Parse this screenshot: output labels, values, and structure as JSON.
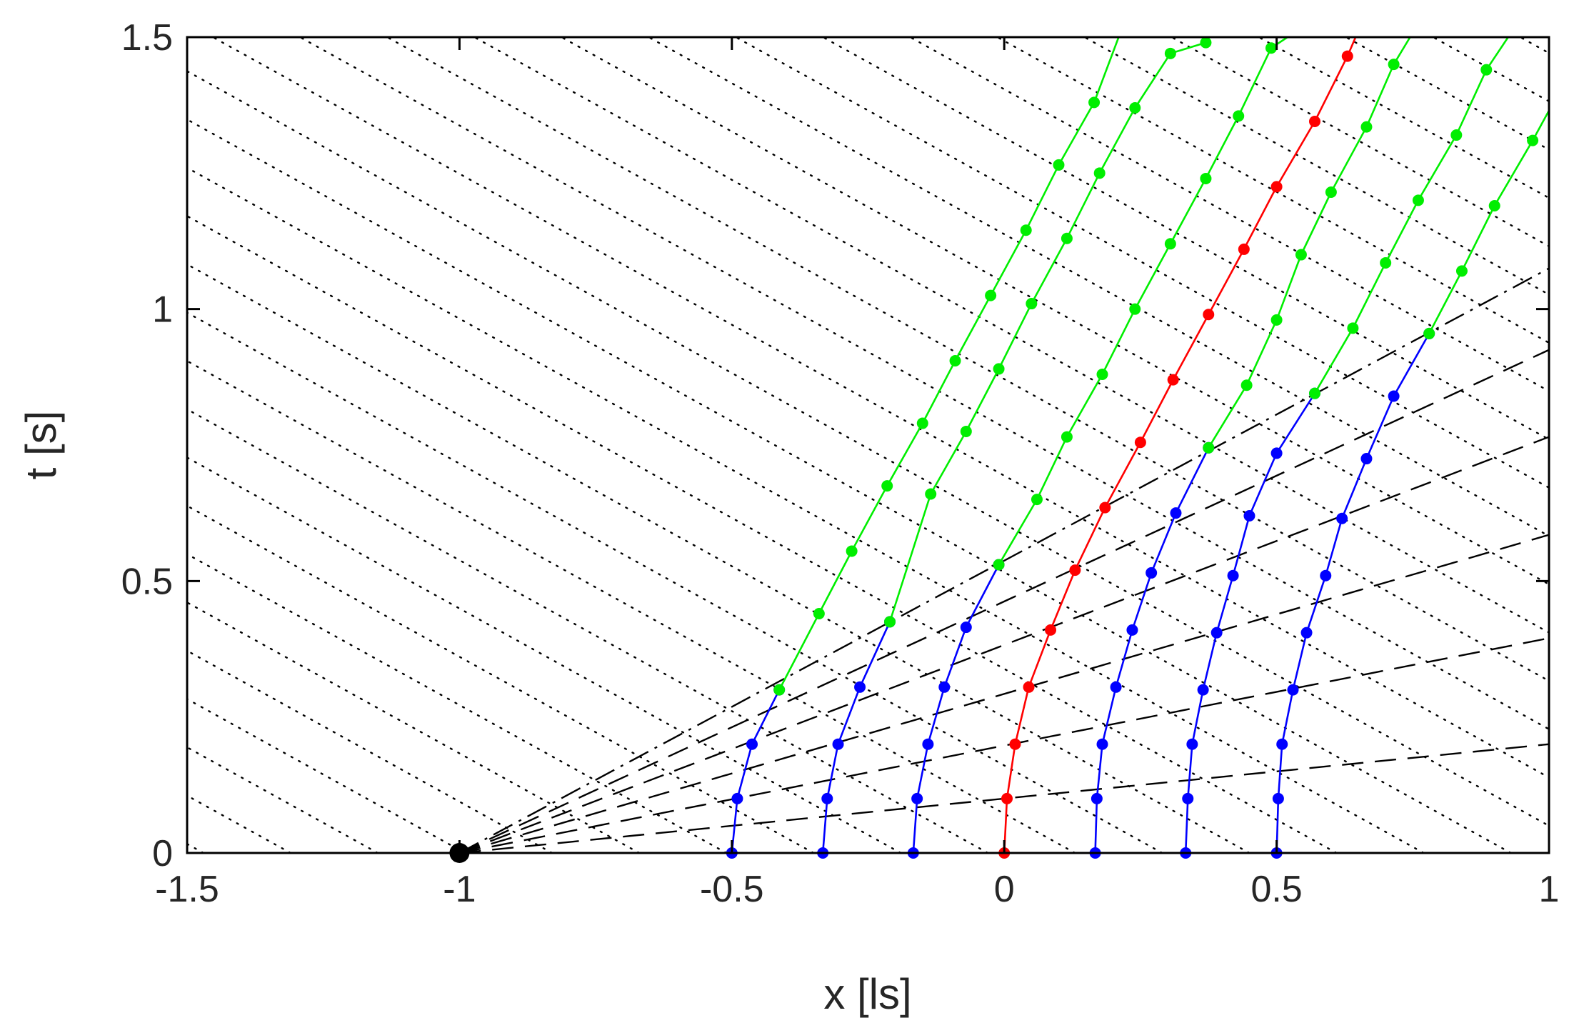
{
  "chart_data": {
    "type": "line",
    "xlabel": "x [ls]",
    "ylabel": "t [s]",
    "xlim": [
      -1.5,
      1
    ],
    "ylim": [
      0,
      1.5
    ],
    "xticks": [
      -1.5,
      -1,
      -0.5,
      0,
      0.5,
      1
    ],
    "yticks": [
      0,
      0.5,
      1,
      1.5
    ],
    "xtick_labels": [
      "-1.5",
      "-1",
      "-0.5",
      "0",
      "0.5",
      "1"
    ],
    "ytick_labels": [
      "0",
      "0.5",
      "1",
      "1.5"
    ],
    "grid": false,
    "colors": {
      "blue": "#0000ff",
      "green": "#00ee00",
      "red": "#ff0000",
      "black": "#000000"
    },
    "origin_point": [
      -1,
      0
    ],
    "series": [
      {
        "color": "blue",
        "points": [
          [
            -0.5,
            0
          ],
          [
            -0.49,
            0.1
          ],
          [
            -0.463,
            0.2
          ],
          [
            -0.413,
            0.3
          ]
        ]
      },
      {
        "color": "green",
        "points": [
          [
            -0.413,
            0.3
          ],
          [
            -0.34,
            0.44
          ],
          [
            -0.28,
            0.555
          ],
          [
            -0.215,
            0.675
          ],
          [
            -0.15,
            0.79
          ],
          [
            -0.09,
            0.905
          ],
          [
            -0.025,
            1.025
          ],
          [
            0.04,
            1.145
          ],
          [
            0.1,
            1.265
          ],
          [
            0.165,
            1.38
          ],
          [
            0.21,
            1.5
          ]
        ]
      },
      {
        "color": "blue",
        "points": [
          [
            -0.333,
            0
          ],
          [
            -0.325,
            0.1
          ],
          [
            -0.305,
            0.2
          ],
          [
            -0.265,
            0.305
          ],
          [
            -0.21,
            0.425
          ]
        ]
      },
      {
        "color": "green",
        "points": [
          [
            -0.21,
            0.425
          ],
          [
            -0.135,
            0.66
          ],
          [
            -0.07,
            0.775
          ],
          [
            -0.01,
            0.89
          ],
          [
            0.05,
            1.01
          ],
          [
            0.115,
            1.13
          ],
          [
            0.175,
            1.25
          ],
          [
            0.24,
            1.37
          ],
          [
            0.305,
            1.47
          ],
          [
            0.37,
            1.49
          ]
        ]
      },
      {
        "color": "blue",
        "points": [
          [
            -0.167,
            0
          ],
          [
            -0.16,
            0.1
          ],
          [
            -0.14,
            0.2
          ],
          [
            -0.11,
            0.305
          ],
          [
            -0.07,
            0.415
          ],
          [
            -0.01,
            0.53
          ]
        ]
      },
      {
        "color": "green",
        "points": [
          [
            -0.01,
            0.53
          ],
          [
            0.06,
            0.65
          ],
          [
            0.115,
            0.765
          ],
          [
            0.18,
            0.88
          ],
          [
            0.24,
            1.0
          ],
          [
            0.305,
            1.12
          ],
          [
            0.37,
            1.24
          ],
          [
            0.43,
            1.355
          ],
          [
            0.49,
            1.48
          ],
          [
            0.52,
            1.5
          ]
        ]
      },
      {
        "color": "red",
        "points": [
          [
            0,
            0
          ],
          [
            0.005,
            0.1
          ],
          [
            0.02,
            0.2
          ],
          [
            0.045,
            0.305
          ],
          [
            0.085,
            0.41
          ],
          [
            0.13,
            0.52
          ],
          [
            0.185,
            0.635
          ],
          [
            0.25,
            0.755
          ],
          [
            0.31,
            0.87
          ],
          [
            0.375,
            0.99
          ],
          [
            0.44,
            1.11
          ],
          [
            0.5,
            1.225
          ],
          [
            0.57,
            1.345
          ],
          [
            0.63,
            1.465
          ],
          [
            0.645,
            1.5
          ]
        ]
      },
      {
        "color": "blue",
        "points": [
          [
            0.167,
            0
          ],
          [
            0.17,
            0.1
          ],
          [
            0.18,
            0.2
          ],
          [
            0.205,
            0.305
          ],
          [
            0.235,
            0.41
          ],
          [
            0.27,
            0.515
          ],
          [
            0.315,
            0.625
          ],
          [
            0.375,
            0.745
          ]
        ]
      },
      {
        "color": "green",
        "points": [
          [
            0.375,
            0.745
          ],
          [
            0.445,
            0.86
          ],
          [
            0.5,
            0.98
          ],
          [
            0.545,
            1.1
          ],
          [
            0.6,
            1.215
          ],
          [
            0.665,
            1.335
          ],
          [
            0.715,
            1.45
          ],
          [
            0.745,
            1.5
          ]
        ]
      },
      {
        "color": "blue",
        "points": [
          [
            0.333,
            0
          ],
          [
            0.337,
            0.1
          ],
          [
            0.345,
            0.2
          ],
          [
            0.365,
            0.3
          ],
          [
            0.39,
            0.405
          ],
          [
            0.42,
            0.51
          ],
          [
            0.45,
            0.62
          ],
          [
            0.5,
            0.735
          ],
          [
            0.57,
            0.845
          ]
        ]
      },
      {
        "color": "green",
        "points": [
          [
            0.57,
            0.845
          ],
          [
            0.64,
            0.965
          ],
          [
            0.7,
            1.085
          ],
          [
            0.76,
            1.2
          ],
          [
            0.83,
            1.32
          ],
          [
            0.885,
            1.44
          ],
          [
            0.925,
            1.5
          ]
        ]
      },
      {
        "color": "blue",
        "points": [
          [
            0.5,
            0
          ],
          [
            0.503,
            0.1
          ],
          [
            0.51,
            0.2
          ],
          [
            0.53,
            0.3
          ],
          [
            0.555,
            0.405
          ],
          [
            0.59,
            0.51
          ],
          [
            0.62,
            0.615
          ],
          [
            0.665,
            0.725
          ],
          [
            0.715,
            0.84
          ],
          [
            0.78,
            0.955
          ]
        ]
      },
      {
        "color": "green",
        "points": [
          [
            0.78,
            0.955
          ],
          [
            0.84,
            1.07
          ],
          [
            0.9,
            1.19
          ],
          [
            0.97,
            1.31
          ],
          [
            1.0,
            1.365
          ]
        ]
      }
    ],
    "dashed_rays": [
      {
        "from": [
          -1,
          0
        ],
        "to": [
          1,
          0.2
        ]
      },
      {
        "from": [
          -1,
          0
        ],
        "to": [
          1,
          0.395
        ]
      },
      {
        "from": [
          -1,
          0
        ],
        "to": [
          1,
          0.585
        ]
      },
      {
        "from": [
          -1,
          0
        ],
        "to": [
          1,
          0.765
        ]
      },
      {
        "from": [
          -1,
          0
        ],
        "to": [
          1,
          0.925
        ]
      }
    ],
    "dashdot_rays": [
      {
        "from": [
          -1,
          0
        ],
        "to": [
          1,
          1.075
        ]
      }
    ],
    "dotted_lines": {
      "slope": 0.555,
      "x_intercepts": [
        -1.47,
        -1.31,
        -1.15,
        -0.99,
        -0.83,
        -0.67,
        -0.51,
        -0.35,
        -0.19,
        -0.03,
        0.13,
        0.29,
        0.45,
        0.61,
        0.77,
        0.93,
        1.09,
        1.25,
        1.41,
        1.57,
        1.73,
        1.89,
        2.05,
        2.21,
        2.37,
        2.53,
        2.69,
        2.85,
        3.01,
        3.17,
        3.33,
        3.49,
        3.65,
        3.81,
        3.97,
        4.13
      ]
    }
  }
}
